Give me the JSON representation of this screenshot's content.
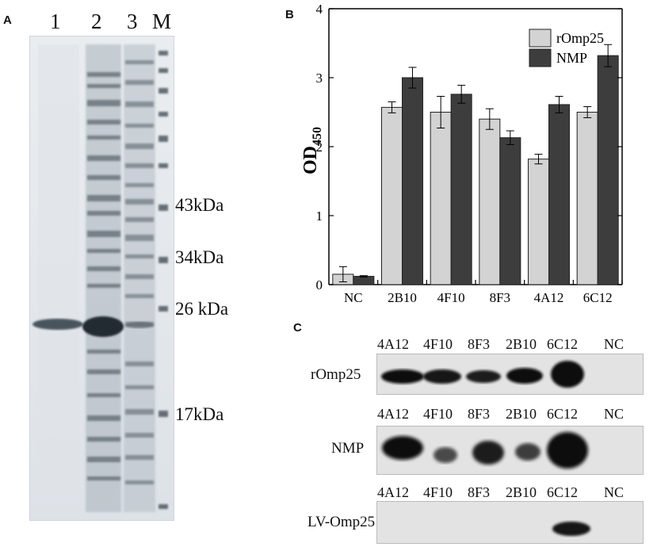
{
  "panels": {
    "a": {
      "letter": "A",
      "lanes": [
        "1",
        "2",
        "3",
        "M"
      ],
      "markers": [
        "43kDa",
        "34kDa",
        "26 kDa",
        "17kDa"
      ]
    },
    "b": {
      "letter": "B"
    },
    "c": {
      "letter": "C",
      "blots": [
        {
          "label": "rOmp25",
          "lanes": [
            "4A12",
            "4F10",
            "8F3",
            "2B10",
            "6C12",
            "NC"
          ]
        },
        {
          "label": "NMP",
          "lanes": [
            "4A12",
            "4F10",
            "8F3",
            "2B10",
            "6C12",
            "NC"
          ]
        },
        {
          "label": "LV-Omp25",
          "lanes": [
            "4A12",
            "4F10",
            "8F3",
            "2B10",
            "6C12",
            "NC"
          ]
        }
      ]
    }
  },
  "chart_data": {
    "type": "bar",
    "categories": [
      "NC",
      "2B10",
      "4F10",
      "8F3",
      "4A12",
      "6C12"
    ],
    "series": [
      {
        "name": "rOmp25",
        "values": [
          0.15,
          2.57,
          2.5,
          2.4,
          1.82,
          2.5
        ],
        "errors": [
          0.11,
          0.08,
          0.23,
          0.15,
          0.07,
          0.08
        ],
        "color": "#d3d3d3"
      },
      {
        "name": "NMP",
        "values": [
          0.12,
          3.0,
          2.76,
          2.13,
          2.61,
          3.32
        ],
        "errors": [
          0.01,
          0.15,
          0.13,
          0.1,
          0.12,
          0.16
        ],
        "color": "#3d3d3d"
      }
    ],
    "ylabel": "OD",
    "ylabel_sub": "450",
    "ylim": [
      0,
      4
    ],
    "yticks": [
      "0",
      "1",
      "2",
      "3",
      "4"
    ],
    "legend_position": "top-right",
    "grid": false
  }
}
